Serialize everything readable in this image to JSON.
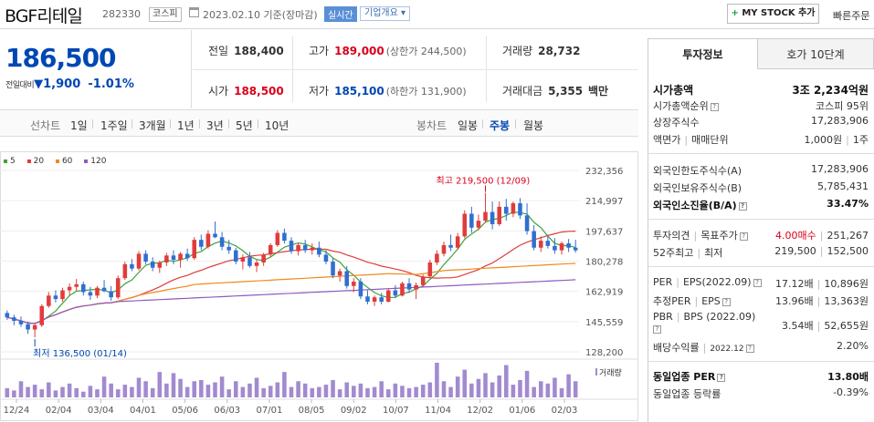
{
  "header": {
    "name": "BGF리테일",
    "code": "282330",
    "market": "코스피",
    "date": "2023.02.10 기준(장마감)",
    "realtime": "실시간",
    "corp_info": "기업개요",
    "mystock": "MY STOCK 추가",
    "quick_order": "빠른주문"
  },
  "price": {
    "current": "186,500",
    "change_label": "전일대비",
    "change": "1,900",
    "change_pct": "-1.01%"
  },
  "stats": {
    "prev_label": "전일",
    "prev": "188,400",
    "high_label": "고가",
    "high": "189,000",
    "high_limit": "(상한가 244,500)",
    "volume_label": "거래량",
    "volume": "28,732",
    "open_label": "시가",
    "open": "188,500",
    "low_label": "저가",
    "low": "185,100",
    "low_limit": "(하한가 131,900)",
    "amount_label": "거래대금",
    "amount": "5,355",
    "amount_unit": "백만"
  },
  "range_tabs": {
    "line_label": "선차트",
    "line_items": [
      "1일",
      "1주일",
      "3개월",
      "1년",
      "3년",
      "5년",
      "10년"
    ],
    "candle_label": "봉차트",
    "candle_items": [
      "일봉",
      "주봉",
      "월봉"
    ],
    "candle_active": "주봉"
  },
  "chart_data": {
    "type": "candlestick",
    "legend": [
      {
        "name": "5",
        "color": "#3fa33a"
      },
      {
        "name": "20",
        "color": "#e03c3c"
      },
      {
        "name": "60",
        "color": "#f08a1c"
      },
      {
        "name": "120",
        "color": "#8e5bbf"
      }
    ],
    "y_ticks": [
      232356,
      214997,
      197637,
      180278,
      162919,
      145559,
      128200
    ],
    "ylim": [
      128200,
      232356
    ],
    "x_ticks": [
      "12/24",
      "02/04",
      "03/04",
      "04/01",
      "05/06",
      "06/03",
      "07/01",
      "08/05",
      "09/02",
      "10/07",
      "11/04",
      "12/02",
      "01/06",
      "02/03"
    ],
    "max_label": "최고 219,500 (12/09)",
    "min_label": "최저 136,500 (01/14)",
    "volume_label": "거래량",
    "candles": [
      [
        150500,
        152000,
        146500,
        148000
      ],
      [
        148000,
        149500,
        143500,
        146000
      ],
      [
        146000,
        148500,
        142500,
        144000
      ],
      [
        144000,
        145500,
        138500,
        141000
      ],
      [
        141000,
        144500,
        136500,
        143500
      ],
      [
        143500,
        155500,
        142500,
        154500
      ],
      [
        154500,
        162500,
        153500,
        160500
      ],
      [
        160500,
        163500,
        156500,
        158500
      ],
      [
        158500,
        165000,
        157000,
        163500
      ],
      [
        163500,
        167500,
        160500,
        165500
      ],
      [
        165500,
        170000,
        163000,
        167000
      ],
      [
        167000,
        168500,
        160500,
        162500
      ],
      [
        162500,
        165500,
        158000,
        160500
      ],
      [
        160500,
        166000,
        159000,
        165000
      ],
      [
        165000,
        169500,
        162500,
        163000
      ],
      [
        163000,
        166000,
        157500,
        159500
      ],
      [
        159500,
        172000,
        158500,
        170500
      ],
      [
        170500,
        180000,
        169500,
        178500
      ],
      [
        178500,
        181500,
        174500,
        176000
      ],
      [
        176000,
        186000,
        175000,
        184500
      ],
      [
        184500,
        186500,
        178500,
        180000
      ],
      [
        180000,
        182500,
        174500,
        176500
      ],
      [
        176500,
        180500,
        173500,
        179500
      ],
      [
        179500,
        185000,
        177500,
        183500
      ],
      [
        183500,
        186500,
        178500,
        181000
      ],
      [
        181000,
        185500,
        176500,
        184500
      ],
      [
        184500,
        187500,
        180500,
        182000
      ],
      [
        182000,
        194000,
        181000,
        192500
      ],
      [
        192500,
        195500,
        186500,
        188500
      ],
      [
        188500,
        198000,
        187500,
        196000
      ],
      [
        196000,
        203000,
        193500,
        194000
      ],
      [
        194000,
        197000,
        186500,
        188500
      ],
      [
        188500,
        192500,
        184500,
        186500
      ],
      [
        186500,
        188000,
        178500,
        180000
      ],
      [
        180000,
        184000,
        175500,
        182500
      ],
      [
        182500,
        185500,
        176500,
        177500
      ],
      [
        177500,
        181000,
        174000,
        179500
      ],
      [
        179500,
        185000,
        177500,
        184000
      ],
      [
        184000,
        190500,
        182500,
        189500
      ],
      [
        189500,
        198000,
        188500,
        196500
      ],
      [
        196500,
        199000,
        190500,
        192000
      ],
      [
        192000,
        194000,
        184500,
        186000
      ],
      [
        186000,
        190500,
        183500,
        189500
      ],
      [
        189500,
        192500,
        185000,
        186500
      ],
      [
        186500,
        190500,
        184000,
        188000
      ],
      [
        188000,
        191500,
        182500,
        184000
      ],
      [
        184000,
        186500,
        178500,
        180000
      ],
      [
        180000,
        182000,
        170500,
        172000
      ],
      [
        172000,
        176000,
        168500,
        174500
      ],
      [
        174500,
        177500,
        164500,
        166000
      ],
      [
        166000,
        170500,
        162500,
        168500
      ],
      [
        168500,
        170500,
        158500,
        160000
      ],
      [
        160000,
        163500,
        155500,
        157000
      ],
      [
        157000,
        160500,
        154500,
        159500
      ],
      [
        159500,
        162000,
        155500,
        157000
      ],
      [
        157000,
        164500,
        156500,
        163500
      ],
      [
        163500,
        166500,
        159000,
        160500
      ],
      [
        160500,
        168500,
        160000,
        167500
      ],
      [
        167500,
        170500,
        162000,
        164000
      ],
      [
        164000,
        168000,
        158500,
        166500
      ],
      [
        166500,
        172500,
        165500,
        171500
      ],
      [
        171500,
        181000,
        170500,
        179500
      ],
      [
        179500,
        186500,
        178000,
        184500
      ],
      [
        184500,
        191500,
        183000,
        189500
      ],
      [
        189500,
        195500,
        186000,
        188000
      ],
      [
        188000,
        196500,
        187000,
        194500
      ],
      [
        194500,
        209500,
        193500,
        207500
      ],
      [
        207500,
        211500,
        196500,
        199500
      ],
      [
        199500,
        207000,
        198000,
        203500
      ],
      [
        203500,
        219500,
        202500,
        208500
      ],
      [
        208500,
        214500,
        198500,
        201500
      ],
      [
        201500,
        214500,
        200500,
        211500
      ],
      [
        211500,
        216000,
        203500,
        207500
      ],
      [
        207500,
        214500,
        205500,
        213500
      ],
      [
        213500,
        216500,
        204500,
        206500
      ],
      [
        206500,
        213500,
        195500,
        197500
      ],
      [
        197500,
        201000,
        186500,
        188000
      ],
      [
        188000,
        194500,
        185500,
        192000
      ],
      [
        192000,
        195500,
        187500,
        189000
      ],
      [
        189000,
        193500,
        184500,
        186500
      ],
      [
        186500,
        191500,
        184000,
        190500
      ],
      [
        190500,
        193000,
        185500,
        188000
      ],
      [
        188000,
        192500,
        185100,
        186500
      ]
    ],
    "volumes": [
      8,
      6,
      14,
      9,
      11,
      7,
      13,
      6,
      9,
      12,
      8,
      5,
      10,
      7,
      18,
      12,
      7,
      11,
      9,
      17,
      14,
      8,
      22,
      12,
      21,
      16,
      9,
      14,
      15,
      11,
      13,
      18,
      7,
      14,
      9,
      12,
      17,
      8,
      10,
      13,
      22,
      9,
      14,
      12,
      8,
      9,
      11,
      15,
      7,
      13,
      10,
      12,
      8,
      9,
      14,
      7,
      12,
      10,
      8,
      9,
      11,
      13,
      30,
      14,
      9,
      18,
      24,
      12,
      16,
      21,
      13,
      19,
      28,
      11,
      15,
      23,
      9,
      14,
      12,
      17,
      8,
      20,
      14
    ]
  },
  "right_panel": {
    "tab_invest": "투자정보",
    "tab_quote": "호가 10단계",
    "market_cap_label": "시가총액",
    "market_cap": "3조 2,234억원",
    "cap_rank_label": "시가총액순위",
    "cap_rank": "코스피 95위",
    "shares_label": "상장주식수",
    "shares": "17,283,906",
    "par_label": "액면가",
    "unit_label": "매매단위",
    "par": "1,000원",
    "unit": "1주",
    "foreign_limit_label": "외국인한도주식수(A)",
    "foreign_limit": "17,283,906",
    "foreign_hold_label": "외국인보유주식수(B)",
    "foreign_hold": "5,785,431",
    "foreign_ratio_label": "외국인소진율(B/A)",
    "foreign_ratio": "33.47%",
    "opinion_label": "투자의견",
    "target_label": "목표주가",
    "opinion": "4.00매수",
    "target": "251,267",
    "w52_high_label": "52주최고",
    "w52_low_label": "최저",
    "w52_high": "219,500",
    "w52_low": "152,500",
    "per_label": "PER",
    "eps_label": "EPS(2022.09)",
    "per": "17.12배",
    "eps": "10,896원",
    "est_per_label": "추정PER",
    "est_eps_label": "EPS",
    "est_per": "13.96배",
    "est_eps": "13,363원",
    "pbr_label": "PBR",
    "bps_label": "BPS (2022.09)",
    "pbr": "3.54배",
    "bps": "52,655원",
    "div_label": "배당수익률",
    "div_date": "2022.12",
    "div": "2.20%",
    "ind_per_label": "동일업종 PER",
    "ind_per": "13.80배",
    "ind_rate_label": "동일업종 등락률",
    "ind_rate": "-0.39%"
  }
}
